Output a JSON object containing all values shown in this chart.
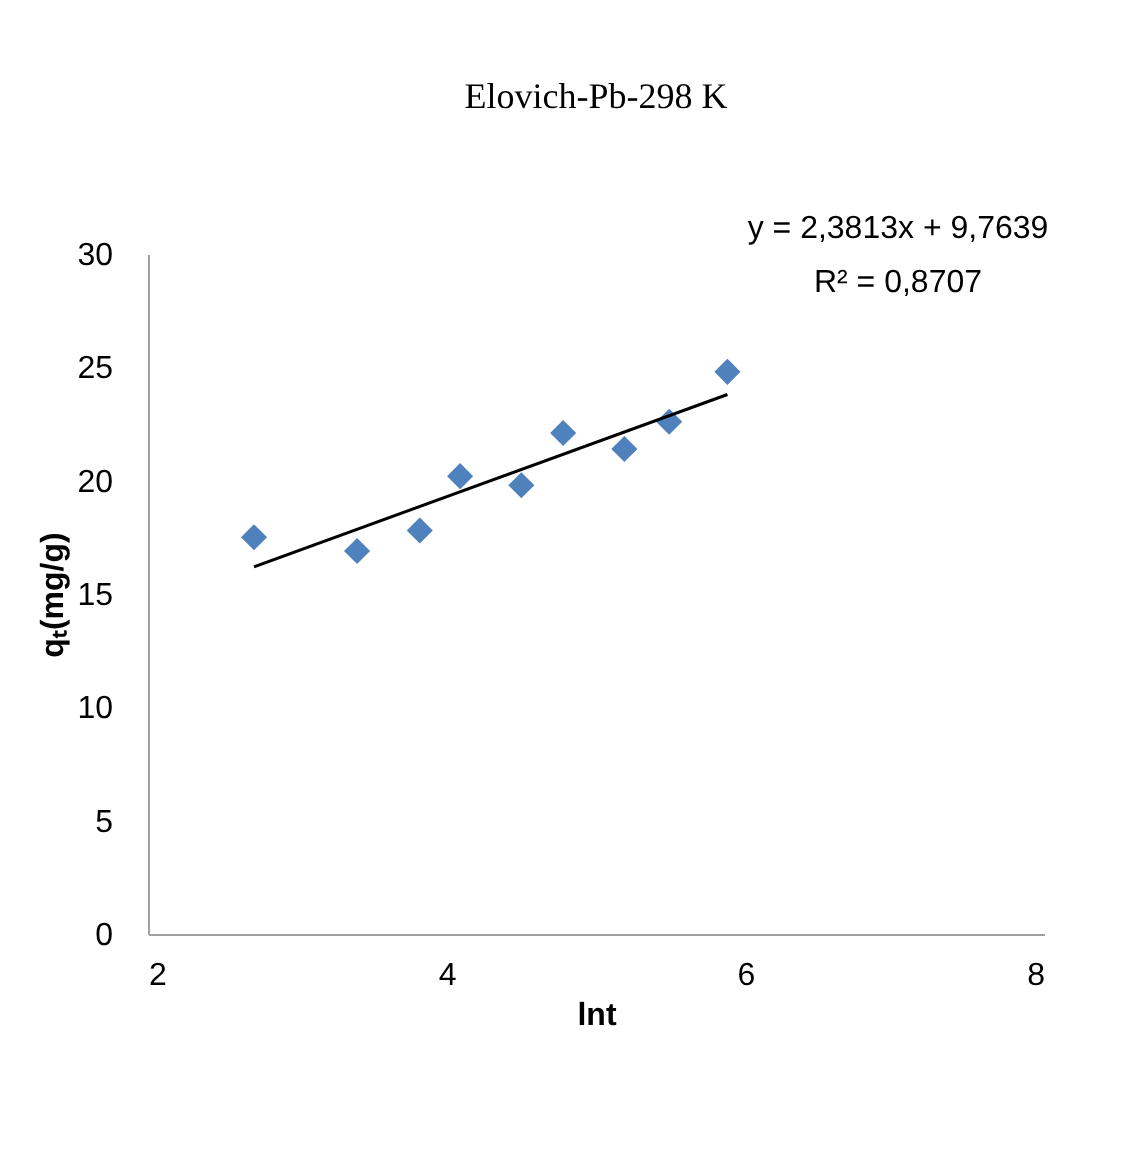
{
  "chart_data": {
    "type": "scatter",
    "title": "Elovich-Pb-298 K",
    "xlabel": "lnt",
    "ylabel": "qₜ(mg/g)",
    "annotations": [
      "y = 2,3813x + 9,7639",
      "R² = 0,8707"
    ],
    "xlim": [
      2,
      8
    ],
    "xticks": [
      2,
      4,
      6,
      8
    ],
    "ylim": [
      0,
      30
    ],
    "yticks": [
      0,
      5,
      10,
      15,
      20,
      25,
      30
    ],
    "grid": false,
    "series": [
      {
        "marker": "diamond",
        "color": "#4f81bd",
        "x": [
          2.71,
          3.4,
          3.82,
          4.09,
          4.5,
          4.78,
          5.19,
          5.49,
          5.88
        ],
        "values": [
          17.5,
          16.9,
          17.8,
          20.2,
          19.8,
          22.1,
          21.4,
          22.6,
          24.8
        ]
      },
      {
        "type": "line",
        "line_style": "solid",
        "color": "#000000",
        "x": [
          2.71,
          5.88
        ],
        "values": [
          16.2,
          23.8
        ]
      }
    ]
  }
}
